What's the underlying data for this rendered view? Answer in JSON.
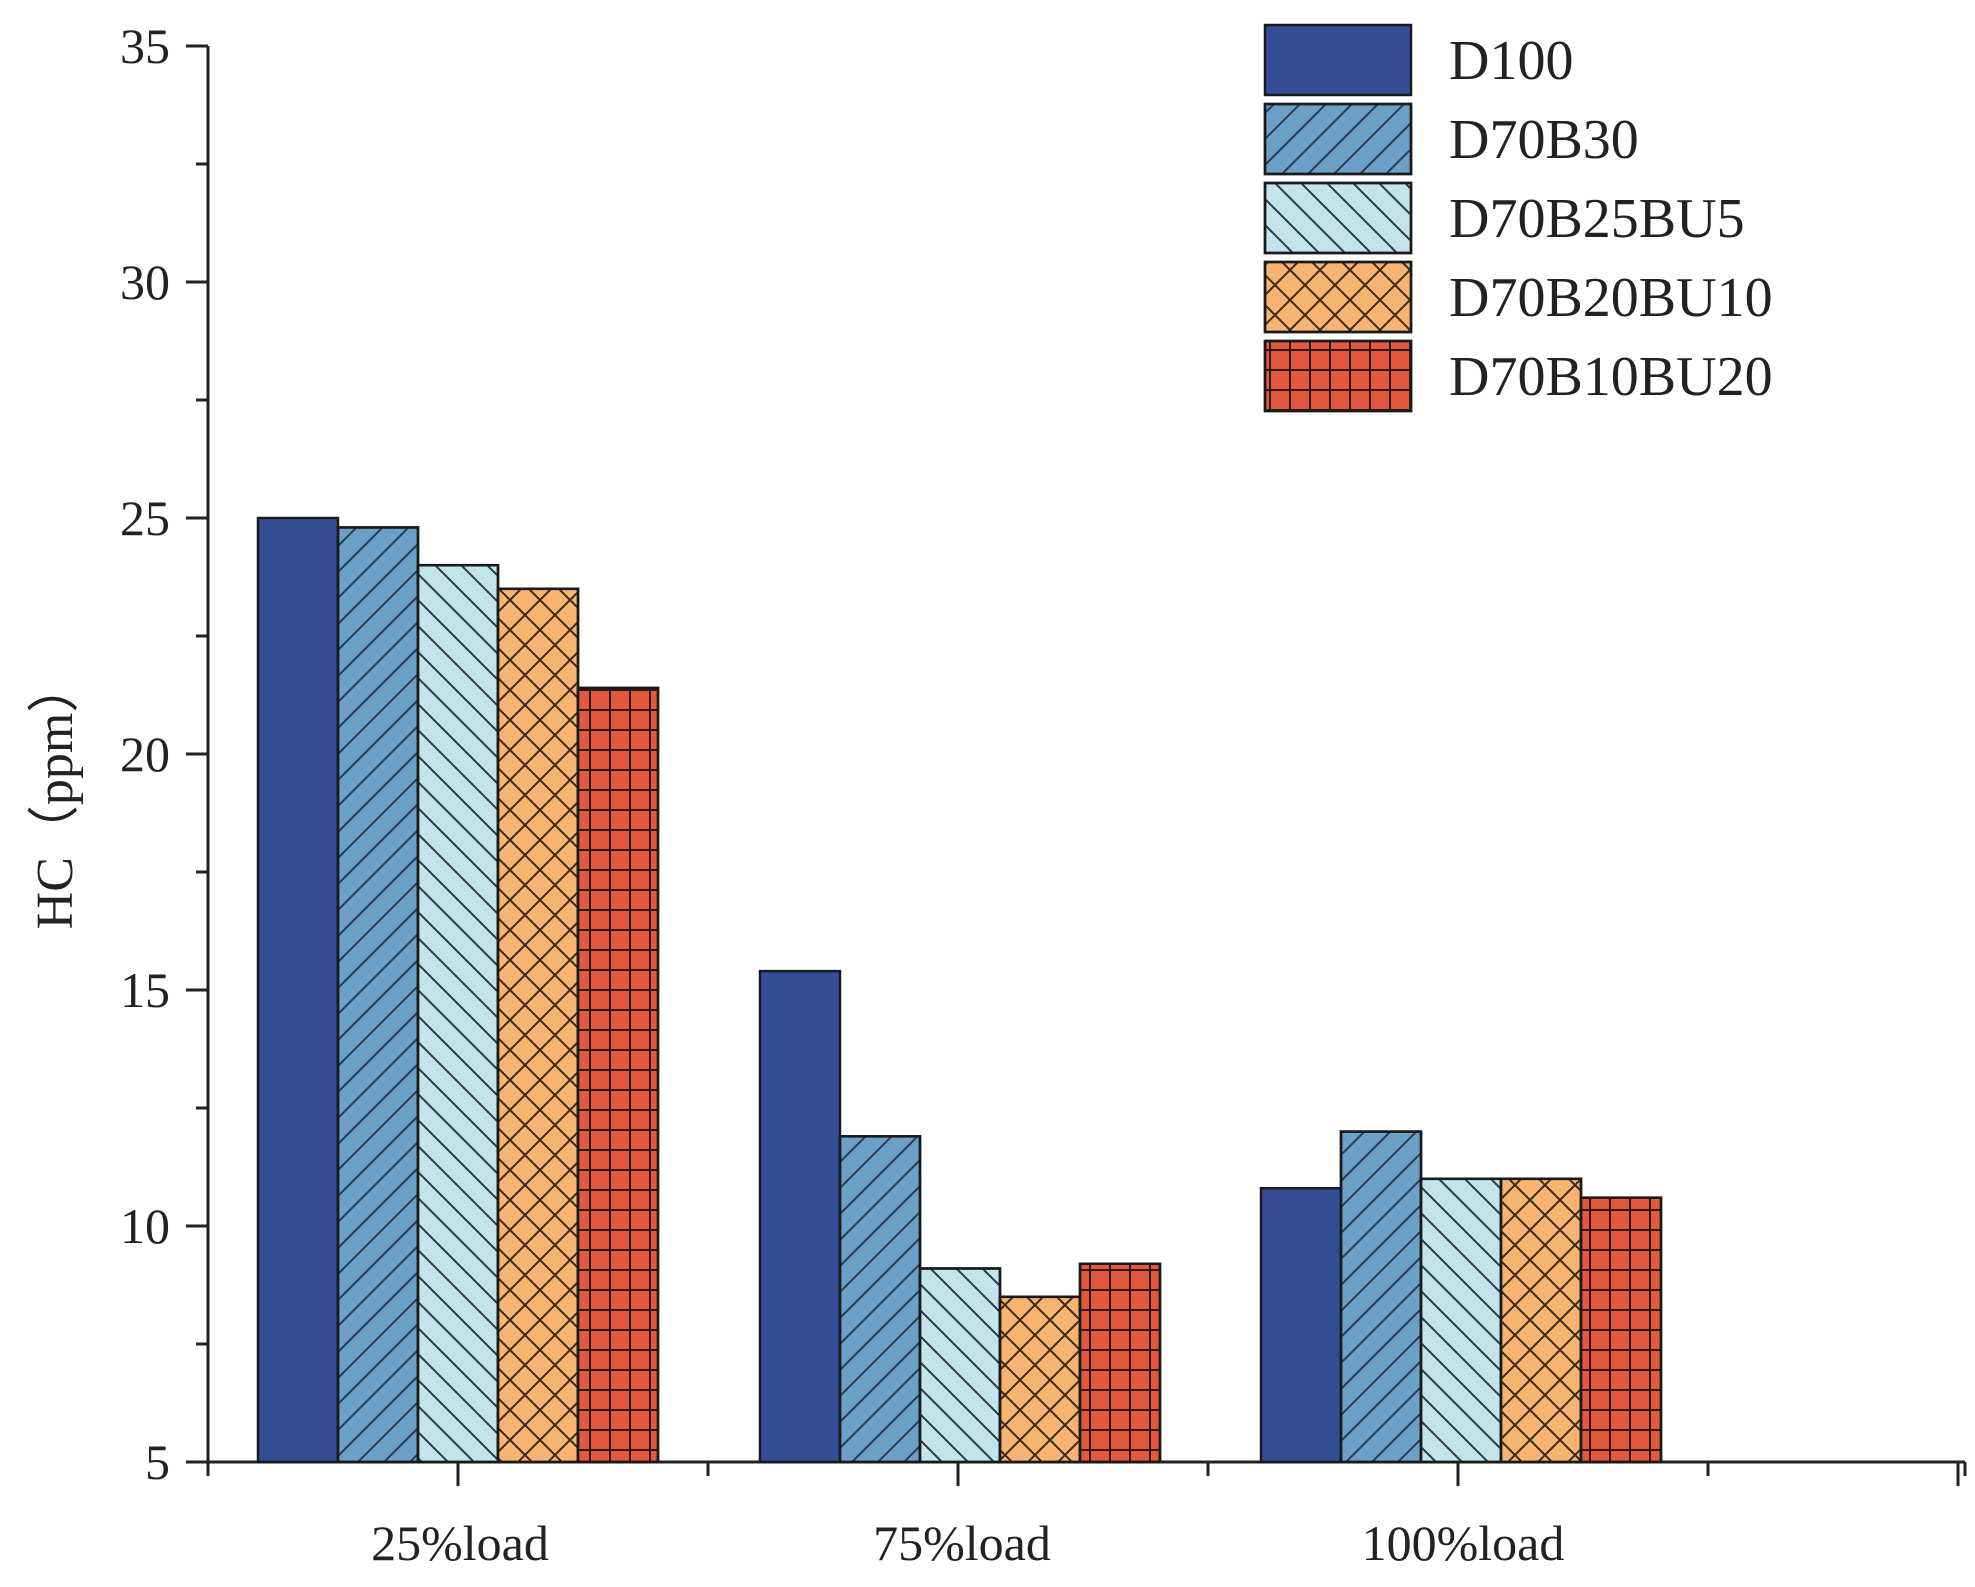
{
  "chart_data": {
    "type": "bar",
    "title": "",
    "xlabel": "",
    "ylabel": "HC（ppm）",
    "ylim": [
      5,
      35
    ],
    "yticks": [
      5,
      10,
      15,
      20,
      25,
      30,
      35
    ],
    "categories": [
      "25%load",
      "75%load",
      "100%load"
    ],
    "legend_position": "top-right",
    "grid": false,
    "series": [
      {
        "name": "D100",
        "values": [
          25.0,
          15.4,
          10.8
        ],
        "color": "#344d96",
        "pattern": "solid"
      },
      {
        "name": "D70B30",
        "values": [
          24.8,
          11.9,
          12.0
        ],
        "color": "#6ba0c9",
        "pattern": "diag-up"
      },
      {
        "name": "D70B25BU5",
        "values": [
          24.0,
          9.1,
          11.0
        ],
        "color": "#c4e4ec",
        "pattern": "diag-down"
      },
      {
        "name": "D70B20BU10",
        "values": [
          23.5,
          8.5,
          11.0
        ],
        "color": "#f6b470",
        "pattern": "cross"
      },
      {
        "name": "D70B10BU20",
        "values": [
          21.4,
          9.2,
          10.6
        ],
        "color": "#e4583d",
        "pattern": "grid"
      }
    ]
  }
}
